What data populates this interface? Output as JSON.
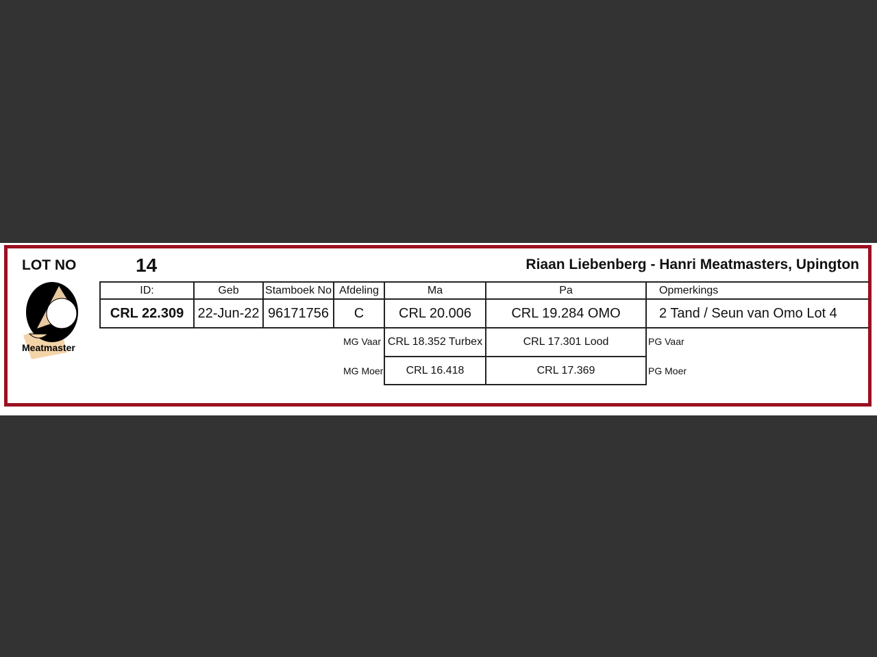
{
  "header": {
    "lot_label": "LOT NO",
    "lot_number": "14",
    "seller": "Riaan Liebenberg - Hanri Meatmasters, Upington"
  },
  "logo": {
    "text": "Meatmaster",
    "colors": {
      "circle": "#000000",
      "tan": "#f3d3a8"
    }
  },
  "table": {
    "headers": [
      "ID:",
      "Geb",
      "Stamboek No",
      "Afdeling",
      "Ma",
      "Pa",
      "Opmerkings"
    ],
    "values": [
      "CRL 22.309",
      "22-Jun-22",
      "96171756",
      "C",
      "CRL 20.006",
      "CRL 19.284 OMO",
      "2 Tand  / Seun van Omo Lot 4"
    ]
  },
  "pedigree": {
    "mg_vaar_label": "MG Vaar",
    "mg_vaar": "CRL 18.352 Turbex",
    "mg_moer_label": "MG Moer",
    "mg_moer": "CRL 16.418",
    "pg_vaar_label": "PG Vaar",
    "pg_vaar": "CRL 17.301 Lood",
    "pg_moer_label": "PG Moer",
    "pg_moer": "CRL 17.369"
  },
  "colors": {
    "border": "#9b1020",
    "background": "#333333"
  }
}
